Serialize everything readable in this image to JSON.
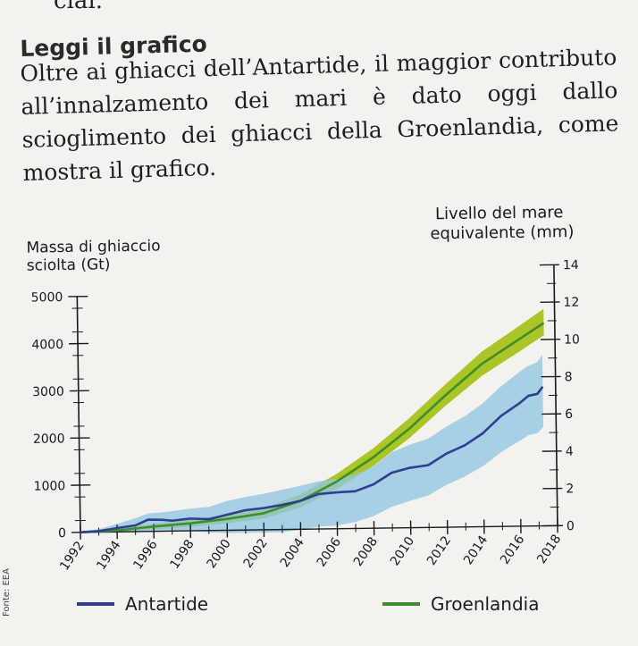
{
  "page": {
    "top_fragment": "ciai.",
    "heading": "Leggi il grafico",
    "paragraph": "Oltre ai ghiacci dell’Antartide, il maggior contributo all’innalzamento dei mari è dato oggi dallo scioglimento dei ghiacci della Groenlandia, come mostra il grafico.",
    "source": "Fonte: EEA"
  },
  "colors": {
    "antarctica_line": "#2f3f8f",
    "antarctica_band": "#8fc6e0",
    "greenland_line": "#3c8f2a",
    "greenland_band": "#a6c21a",
    "axis": "#1a1a1a"
  },
  "chart_data": {
    "type": "line",
    "left_axis_label": [
      "Massa di ghiaccio",
      "sciolta (Gt)"
    ],
    "right_axis_label": [
      "Livello del mare",
      "equivalente (mm)"
    ],
    "left_axis": {
      "min": 0,
      "max": 5000,
      "ticks": [
        0,
        1000,
        2000,
        3000,
        4000,
        5000
      ]
    },
    "right_axis": {
      "min": 0,
      "max": 14,
      "ticks": [
        0,
        2,
        4,
        6,
        8,
        10,
        12,
        14
      ]
    },
    "x_ticks": [
      1992,
      1994,
      1996,
      1998,
      2000,
      2002,
      2004,
      2006,
      2008,
      2010,
      2012,
      2014,
      2016,
      2018
    ],
    "x_range": [
      1992,
      2018
    ],
    "legend_position": "bottom",
    "series": [
      {
        "name": "Antartide",
        "years": [
          1992,
          1993,
          1994,
          1995,
          1995.7,
          1996.5,
          1997,
          1998,
          1999,
          2000,
          2001,
          2002,
          2003,
          2004,
          2005,
          2006,
          2007,
          2008,
          2009,
          2010,
          2011,
          2012,
          2013,
          2014,
          2015,
          2016,
          2016.5,
          2017,
          2017.3
        ],
        "values": [
          0,
          20,
          80,
          130,
          250,
          240,
          220,
          260,
          240,
          330,
          420,
          460,
          520,
          600,
          740,
          770,
          790,
          930,
          1170,
          1270,
          1320,
          1560,
          1730,
          1980,
          2340,
          2600,
          2760,
          2800,
          2950
        ],
        "band_low": [
          0,
          -20,
          -20,
          -20,
          10,
          0,
          -10,
          0,
          -40,
          -60,
          -60,
          -60,
          -60,
          -10,
          50,
          70,
          140,
          260,
          450,
          570,
          680,
          900,
          1070,
          1290,
          1580,
          1810,
          1930,
          1970,
          2100
        ],
        "band_high": [
          30,
          60,
          170,
          280,
          380,
          400,
          420,
          470,
          500,
          620,
          700,
          760,
          840,
          920,
          1010,
          1060,
          1140,
          1310,
          1600,
          1760,
          1880,
          2130,
          2340,
          2610,
          2960,
          3260,
          3390,
          3470,
          3620
        ]
      },
      {
        "name": "Groenlandia",
        "years": [
          1992,
          1994,
          1996,
          1998,
          2000,
          2002,
          2004,
          2006,
          2008,
          2010,
          2012,
          2014,
          2016,
          2017.4
        ],
        "values": [
          0,
          30,
          100,
          160,
          240,
          350,
          600,
          1000,
          1500,
          2100,
          2800,
          3450,
          3950,
          4300
        ],
        "band_low": [
          0,
          0,
          40,
          80,
          150,
          240,
          460,
          840,
          1320,
          1900,
          2580,
          3200,
          3690,
          4040
        ],
        "band_high": [
          20,
          70,
          160,
          240,
          330,
          460,
          740,
          1160,
          1690,
          2320,
          3030,
          3710,
          4230,
          4600
        ]
      }
    ]
  }
}
